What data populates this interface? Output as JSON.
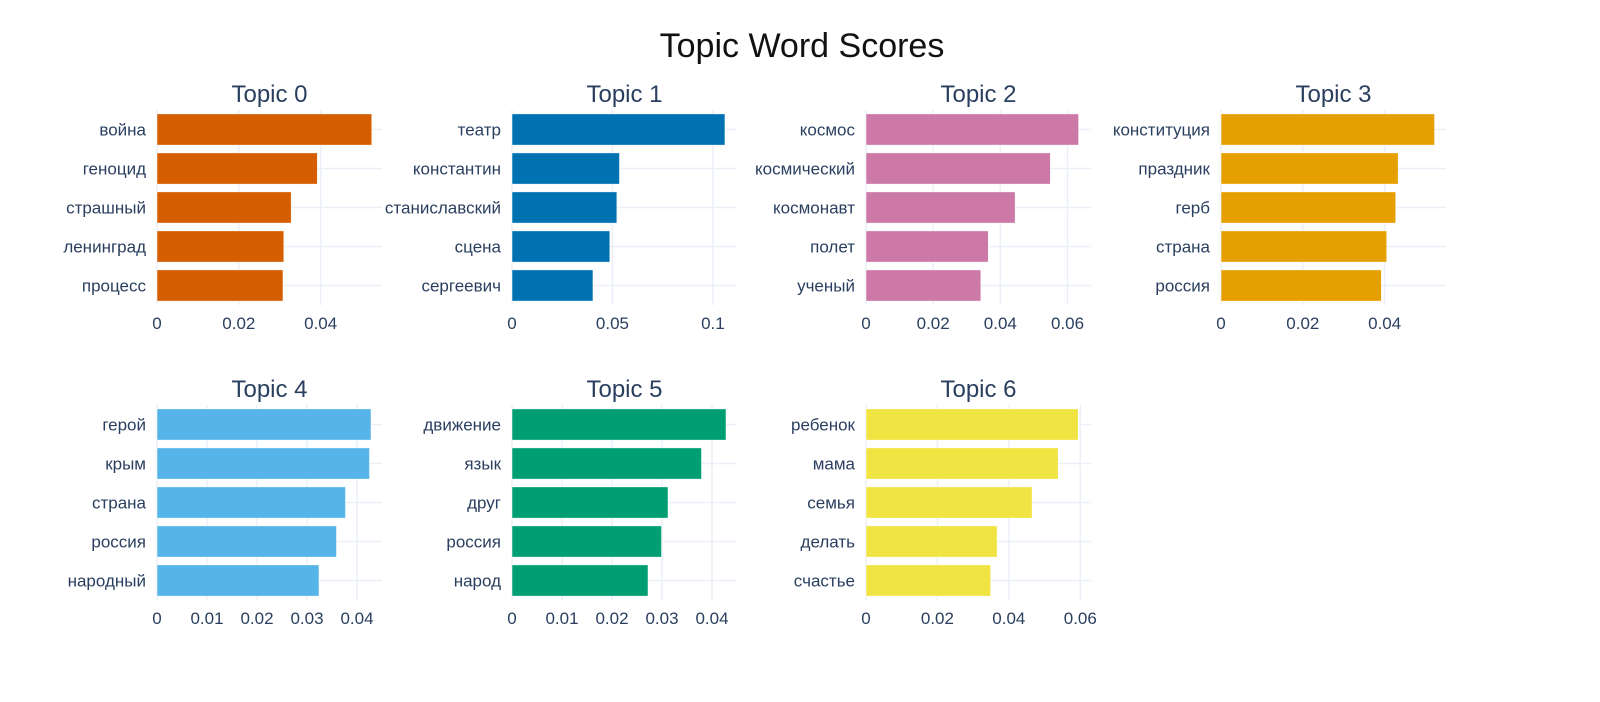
{
  "chart_data": {
    "type": "bar",
    "orientation": "horizontal",
    "title": "Topic Word Scores",
    "grid": true,
    "subplots": [
      {
        "title": "Topic 0",
        "color": "#D55E00",
        "categories": [
          "война",
          "геноцид",
          "страшный",
          "ленинград",
          "процесс"
        ],
        "values": [
          0.0525,
          0.0392,
          0.0328,
          0.031,
          0.0308
        ],
        "xticks": [
          0,
          0.02,
          0.04
        ],
        "xtick_labels": [
          "0",
          "0.02",
          "0.04"
        ],
        "xlim": [
          0,
          0.055
        ]
      },
      {
        "title": "Topic 1",
        "color": "#0072B2",
        "categories": [
          "театр",
          "константин",
          "станиславский",
          "сцена",
          "сергеевич"
        ],
        "values": [
          0.106,
          0.0535,
          0.0522,
          0.0487,
          0.0403
        ],
        "xticks": [
          0,
          0.05,
          0.1
        ],
        "xtick_labels": [
          "0",
          "0.05",
          "0.1"
        ],
        "xlim": [
          0,
          0.112
        ]
      },
      {
        "title": "Topic 2",
        "color": "#CC79A7",
        "categories": [
          "космос",
          "космический",
          "космонавт",
          "полет",
          "ученый"
        ],
        "values": [
          0.0633,
          0.0549,
          0.0444,
          0.0364,
          0.0342
        ],
        "xticks": [
          0,
          0.02,
          0.04,
          0.06
        ],
        "xtick_labels": [
          "0",
          "0.02",
          "0.04",
          "0.06"
        ],
        "xlim": [
          0,
          0.067
        ]
      },
      {
        "title": "Topic 3",
        "color": "#E69F00",
        "categories": [
          "конституция",
          "праздник",
          "герб",
          "страна",
          "россия"
        ],
        "values": [
          0.0522,
          0.0433,
          0.0427,
          0.0405,
          0.0392
        ],
        "xticks": [
          0,
          0.02,
          0.04
        ],
        "xtick_labels": [
          "0",
          "0.02",
          "0.04"
        ],
        "xlim": [
          0,
          0.055
        ]
      },
      {
        "title": "Topic 4",
        "color": "#56B4E9",
        "categories": [
          "герой",
          "крым",
          "страна",
          "россия",
          "народный"
        ],
        "values": [
          0.0428,
          0.0425,
          0.0377,
          0.0359,
          0.0324
        ],
        "xticks": [
          0,
          0.01,
          0.02,
          0.03,
          0.04
        ],
        "xtick_labels": [
          "0",
          "0.01",
          "0.02",
          "0.03",
          "0.04"
        ],
        "xlim": [
          0,
          0.045
        ]
      },
      {
        "title": "Topic 5",
        "color": "#009E73",
        "categories": [
          "движение",
          "язык",
          "друг",
          "россия",
          "народ"
        ],
        "values": [
          0.0428,
          0.0379,
          0.0312,
          0.0299,
          0.0272
        ],
        "xticks": [
          0,
          0.01,
          0.02,
          0.03,
          0.04
        ],
        "xtick_labels": [
          "0",
          "0.01",
          "0.02",
          "0.03",
          "0.04"
        ],
        "xlim": [
          0,
          0.045
        ]
      },
      {
        "title": "Topic 6",
        "color": "#F0E442",
        "categories": [
          "ребенок",
          "мама",
          "семья",
          "делать",
          "счастье"
        ],
        "values": [
          0.0594,
          0.0538,
          0.0465,
          0.0367,
          0.0349
        ],
        "xticks": [
          0,
          0.02,
          0.04,
          0.06
        ],
        "xtick_labels": [
          "0",
          "0.02",
          "0.04",
          "0.06"
        ],
        "xlim": [
          0,
          0.063
        ]
      }
    ]
  }
}
